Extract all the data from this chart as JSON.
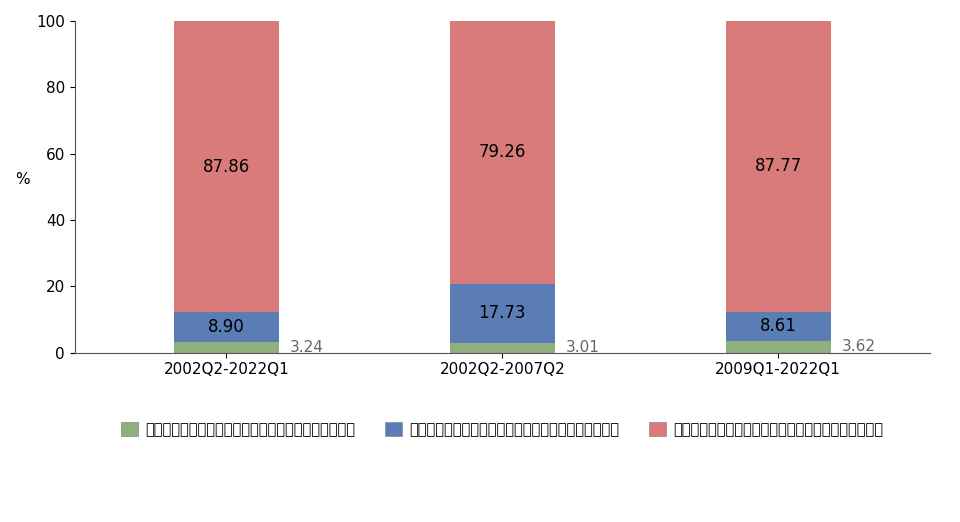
{
  "categories": [
    "2002Q2-2022Q1",
    "2002Q2-2007Q2",
    "2009Q1-2022Q1"
  ],
  "segment_labels": [
    "ปัจจัยเฉพาะในหมวดพื้นฐาน",
    "ปัจจัยเฉพาะในหมวดอาหารสด",
    "ปัจจัยเฉพาะในหมวดพลังงาน"
  ],
  "values_green": [
    3.24,
    3.01,
    3.62
  ],
  "values_blue": [
    8.9,
    17.73,
    8.61
  ],
  "values_red": [
    87.86,
    79.26,
    87.77
  ],
  "outside_labels": [
    "3.24",
    "3.01",
    "3.62"
  ],
  "inside_labels_blue": [
    "8.90",
    "17.73",
    "8.61"
  ],
  "inside_labels_red": [
    "87.86",
    "79.26",
    "87.77"
  ],
  "color_green": "#8faf7e",
  "color_blue": "#5a7db5",
  "color_red": "#d97b7b",
  "ylabel": "%",
  "ylim": [
    0,
    100
  ],
  "yticks": [
    0,
    20,
    40,
    60,
    80,
    100
  ],
  "bar_width": 0.38,
  "background_color": "#ffffff",
  "font_size_labels": 12,
  "font_size_axis": 11,
  "font_size_legend": 10.5
}
